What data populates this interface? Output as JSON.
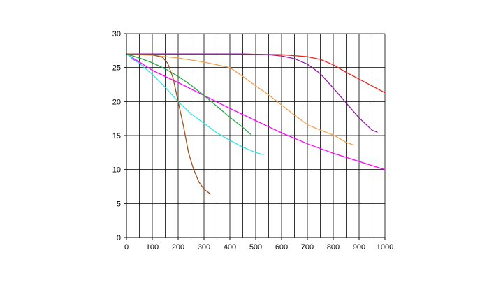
{
  "chart_data": {
    "type": "line",
    "title": "",
    "xlabel": "",
    "ylabel": "",
    "xlim": [
      0,
      1000
    ],
    "ylim": [
      0,
      30
    ],
    "x_major_ticks": [
      0,
      100,
      200,
      300,
      400,
      500,
      600,
      700,
      800,
      900,
      1000
    ],
    "x_grid_step": 50,
    "y_major_ticks": [
      0,
      5,
      10,
      15,
      20,
      25,
      30
    ],
    "grid": true,
    "legend": "none",
    "series": [
      {
        "color": "#e8231e",
        "points": [
          [
            0,
            27
          ],
          [
            200,
            27
          ],
          [
            400,
            27
          ],
          [
            600,
            26.9
          ],
          [
            700,
            26.6
          ],
          [
            750,
            26.2
          ],
          [
            800,
            25.4
          ],
          [
            850,
            24.3
          ],
          [
            900,
            23.3
          ],
          [
            950,
            22.3
          ],
          [
            1000,
            21.3
          ]
        ]
      },
      {
        "color": "#8a1e9b",
        "points": [
          [
            0,
            27
          ],
          [
            300,
            27
          ],
          [
            450,
            27
          ],
          [
            550,
            26.9
          ],
          [
            600,
            26.7
          ],
          [
            650,
            26.3
          ],
          [
            700,
            25.5
          ],
          [
            750,
            24.1
          ],
          [
            800,
            22.0
          ],
          [
            850,
            19.8
          ],
          [
            900,
            17.6
          ],
          [
            950,
            15.8
          ],
          [
            970,
            15.5
          ]
        ]
      },
      {
        "color": "#f0a050",
        "points": [
          [
            0,
            27
          ],
          [
            100,
            26.8
          ],
          [
            200,
            26.4
          ],
          [
            300,
            25.8
          ],
          [
            400,
            25.0
          ],
          [
            450,
            23.7
          ],
          [
            500,
            22.3
          ],
          [
            550,
            21.0
          ],
          [
            600,
            19.5
          ],
          [
            650,
            18.0
          ],
          [
            700,
            16.6
          ],
          [
            750,
            15.8
          ],
          [
            800,
            15.1
          ],
          [
            850,
            14.0
          ],
          [
            880,
            13.6
          ]
        ]
      },
      {
        "color": "#ff00ff",
        "points": [
          [
            0,
            27
          ],
          [
            100,
            24.6
          ],
          [
            200,
            22.8
          ],
          [
            300,
            20.9
          ],
          [
            400,
            19.0
          ],
          [
            500,
            17.2
          ],
          [
            600,
            15.4
          ],
          [
            700,
            13.8
          ],
          [
            800,
            12.4
          ],
          [
            900,
            11.2
          ],
          [
            1000,
            10.0
          ]
        ]
      },
      {
        "color": "#2aa84a",
        "points": [
          [
            0,
            27
          ],
          [
            50,
            26.4
          ],
          [
            100,
            25.7
          ],
          [
            150,
            24.8
          ],
          [
            200,
            23.7
          ],
          [
            250,
            22.4
          ],
          [
            300,
            20.9
          ],
          [
            350,
            19.3
          ],
          [
            400,
            17.7
          ],
          [
            450,
            16.2
          ],
          [
            480,
            15.2
          ]
        ]
      },
      {
        "color": "#33e6e6",
        "points": [
          [
            0,
            27
          ],
          [
            50,
            25.6
          ],
          [
            100,
            24.0
          ],
          [
            150,
            22.1
          ],
          [
            200,
            20.0
          ],
          [
            250,
            18.2
          ],
          [
            300,
            16.8
          ],
          [
            350,
            15.4
          ],
          [
            400,
            14.3
          ],
          [
            450,
            13.3
          ],
          [
            500,
            12.5
          ],
          [
            530,
            12.2
          ]
        ]
      },
      {
        "color": "#7a7aff",
        "points": [
          [
            20,
            26.3
          ],
          [
            40,
            25.9
          ]
        ]
      },
      {
        "color": "#a0521e",
        "points": [
          [
            0,
            27
          ],
          [
            100,
            26.9
          ],
          [
            140,
            26.5
          ],
          [
            160,
            25.6
          ],
          [
            180,
            23.5
          ],
          [
            200,
            20.0
          ],
          [
            220,
            16.5
          ],
          [
            240,
            12.5
          ],
          [
            260,
            10.0
          ],
          [
            280,
            8.2
          ],
          [
            300,
            7.1
          ],
          [
            325,
            6.4
          ]
        ]
      }
    ]
  }
}
